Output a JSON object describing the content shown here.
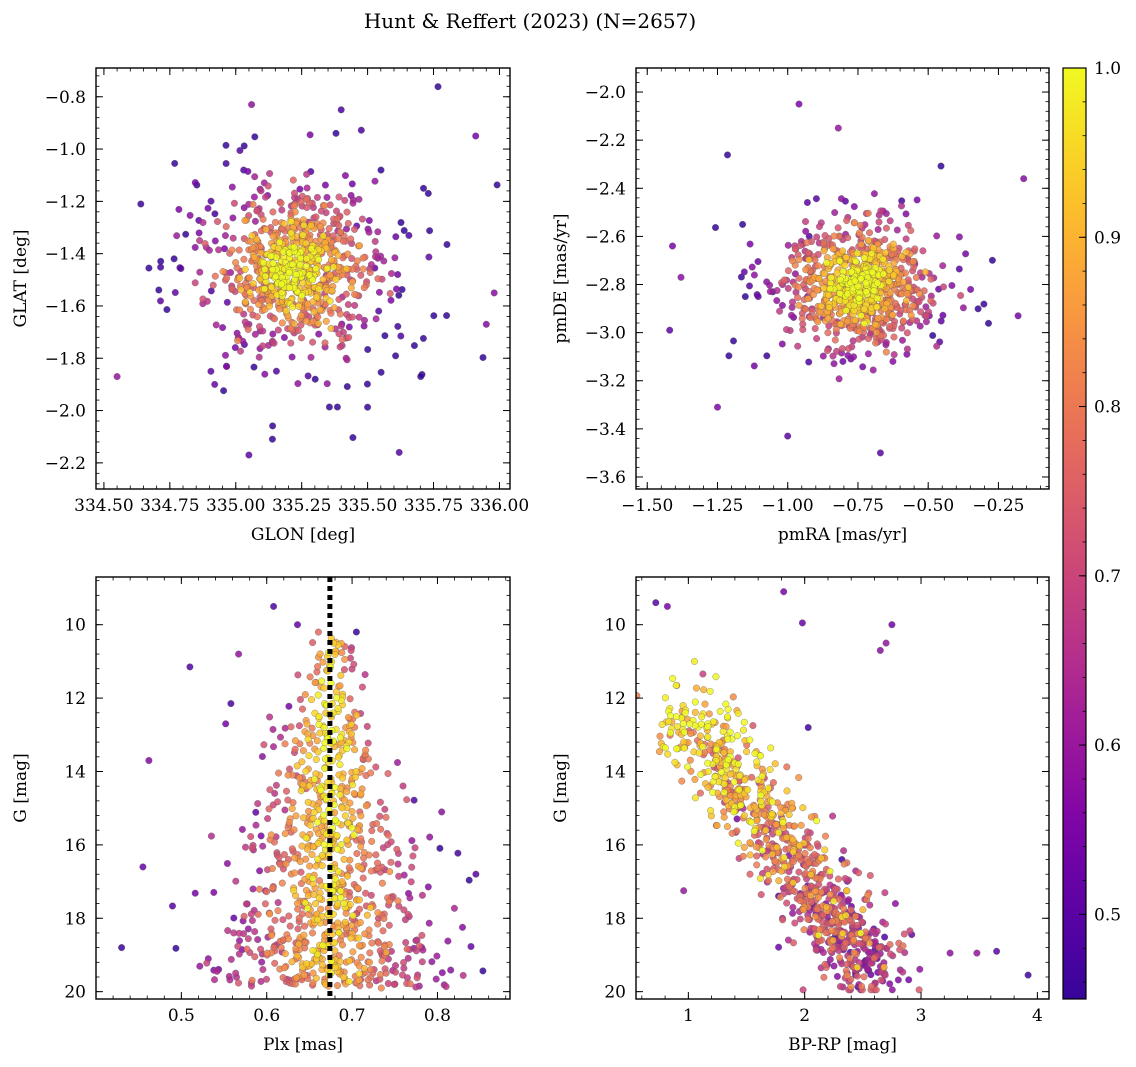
{
  "figure": {
    "title": "Hunt & Reffert (2023) (N=2657)"
  },
  "colorbar": {
    "range": [
      0.45,
      1.0
    ],
    "ticks": [
      0.5,
      0.6,
      0.7,
      0.8,
      0.9,
      1.0
    ],
    "tick_labels": [
      "0.5",
      "0.6",
      "0.7",
      "0.8",
      "0.9",
      "1.0"
    ],
    "colormap": "plasma"
  },
  "chart_data": [
    {
      "id": "sky",
      "type": "scatter",
      "title": "",
      "xlabel": "GLON [deg]",
      "ylabel": "GLAT [deg]",
      "xlim": [
        334.47,
        336.04
      ],
      "ylim": [
        -2.3,
        -0.69
      ],
      "y_inverted": false,
      "xticks": [
        334.5,
        334.75,
        335.0,
        335.25,
        335.5,
        335.75,
        336.0
      ],
      "xtick_labels": [
        "334.50",
        "334.75",
        "335.00",
        "335.25",
        "335.50",
        "335.75",
        "336.00"
      ],
      "yticks": [
        -2.2,
        -2.0,
        -1.8,
        -1.6,
        -1.4,
        -1.2,
        -1.0,
        -0.8
      ],
      "ytick_labels": [
        "−2.2",
        "−2.0",
        "−1.8",
        "−1.6",
        "−1.4",
        "−1.2",
        "−1.0",
        "−0.8"
      ],
      "color_by": "membership probability",
      "model": {
        "center": [
          335.22,
          -1.46
        ],
        "spread": [
          0.25,
          0.24
        ],
        "tail": [
          0.5,
          0.45
        ]
      },
      "outliers": [
        [
          334.55,
          -1.87
        ],
        [
          334.64,
          -1.21
        ],
        [
          335.98,
          -1.55
        ],
        [
          335.95,
          -1.67
        ],
        [
          335.91,
          -0.95
        ],
        [
          335.62,
          -2.16
        ],
        [
          335.05,
          -2.17
        ],
        [
          334.92,
          -1.9
        ],
        [
          335.4,
          -0.85
        ],
        [
          335.06,
          -0.83
        ]
      ]
    },
    {
      "id": "pm",
      "type": "scatter",
      "title": "",
      "xlabel": "pmRA [mas/yr]",
      "ylabel": "pmDE [mas/yr]",
      "xlim": [
        -1.54,
        -0.07
      ],
      "ylim": [
        -3.65,
        -1.9
      ],
      "y_inverted": false,
      "xticks": [
        -1.5,
        -1.25,
        -1.0,
        -0.75,
        -0.5,
        -0.25
      ],
      "xtick_labels": [
        "−1.50",
        "−1.25",
        "−1.00",
        "−0.75",
        "−0.50",
        "−0.25"
      ],
      "yticks": [
        -3.6,
        -3.4,
        -3.2,
        -3.0,
        -2.8,
        -2.6,
        -2.4,
        -2.2,
        -2.0
      ],
      "ytick_labels": [
        "−3.6",
        "−3.4",
        "−3.2",
        "−3.0",
        "−2.8",
        "−2.6",
        "−2.4",
        "−2.2",
        "−2.0"
      ],
      "color_by": "membership probability",
      "model": {
        "center": [
          -0.75,
          -2.8
        ],
        "spread": [
          0.22,
          0.22
        ],
        "tail": [
          0.36,
          0.34
        ]
      },
      "outliers": [
        [
          -0.96,
          -2.05
        ],
        [
          -1.41,
          -2.64
        ],
        [
          -1.42,
          -2.99
        ],
        [
          -1.25,
          -3.31
        ],
        [
          -0.67,
          -3.5
        ],
        [
          -0.18,
          -2.93
        ],
        [
          -0.16,
          -2.36
        ],
        [
          -1.0,
          -3.43
        ],
        [
          -0.82,
          -2.15
        ],
        [
          -1.38,
          -2.77
        ]
      ]
    },
    {
      "id": "plx",
      "type": "scatter",
      "title": "",
      "xlabel": "Plx [mas]",
      "ylabel": "G [mag]",
      "xlim": [
        0.4,
        0.885
      ],
      "ylim": [
        8.7,
        20.2
      ],
      "y_inverted": true,
      "xticks": [
        0.5,
        0.6,
        0.7,
        0.8
      ],
      "xtick_labels": [
        "0.5",
        "0.6",
        "0.7",
        "0.8"
      ],
      "yticks": [
        10,
        12,
        14,
        16,
        18,
        20
      ],
      "ytick_labels": [
        "10",
        "12",
        "14",
        "16",
        "18",
        "20"
      ],
      "color_by": "membership probability",
      "reference_line": {
        "x": 0.674,
        "style": "dotted"
      },
      "model": {
        "center_plx": 0.674,
        "g_range": [
          9.8,
          19.9
        ]
      },
      "outliers": [
        [
          0.51,
          11.15
        ],
        [
          0.552,
          12.7
        ],
        [
          0.558,
          12.15
        ],
        [
          0.567,
          10.8
        ],
        [
          0.608,
          9.5
        ],
        [
          0.455,
          16.6
        ],
        [
          0.462,
          13.7
        ],
        [
          0.43,
          18.8
        ],
        [
          0.845,
          16.8
        ],
        [
          0.805,
          15.1
        ],
        [
          0.705,
          10.2
        ],
        [
          0.636,
          10.0
        ]
      ]
    },
    {
      "id": "cmd",
      "type": "scatter",
      "title": "",
      "xlabel": "BP-RP [mag]",
      "ylabel": "G [mag]",
      "xlim": [
        0.55,
        4.1
      ],
      "ylim": [
        8.7,
        20.2
      ],
      "y_inverted": true,
      "xticks": [
        1,
        2,
        3,
        4
      ],
      "xtick_labels": [
        "1",
        "2",
        "3",
        "4"
      ],
      "yticks": [
        10,
        12,
        14,
        16,
        18,
        20
      ],
      "ytick_labels": [
        "10",
        "12",
        "14",
        "16",
        "18",
        "20"
      ],
      "color_by": "membership probability",
      "model": {
        "sequence_start": [
          0.9,
          12.0
        ],
        "sequence_end": [
          2.6,
          19.6
        ]
      },
      "outliers": [
        [
          0.72,
          9.4
        ],
        [
          0.82,
          9.5
        ],
        [
          1.82,
          9.1
        ],
        [
          1.98,
          9.95
        ],
        [
          2.7,
          10.5
        ],
        [
          2.75,
          10.0
        ],
        [
          2.65,
          10.7
        ],
        [
          0.96,
          17.25
        ],
        [
          3.25,
          18.95
        ],
        [
          3.65,
          18.9
        ],
        [
          3.92,
          19.55
        ],
        [
          3.48,
          18.95
        ],
        [
          2.03,
          12.8
        ],
        [
          2.32,
          16.4
        ],
        [
          2.78,
          17.6
        ]
      ]
    }
  ]
}
